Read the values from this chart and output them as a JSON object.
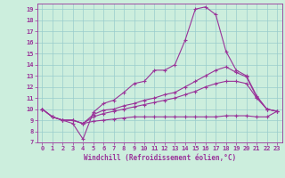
{
  "xlabel": "Windchill (Refroidissement éolien,°C)",
  "x_ticks": [
    0,
    1,
    2,
    3,
    4,
    5,
    6,
    7,
    8,
    9,
    10,
    11,
    12,
    13,
    14,
    15,
    16,
    17,
    18,
    19,
    20,
    21,
    22,
    23
  ],
  "ylim": [
    7,
    19.5
  ],
  "xlim": [
    -0.5,
    23.5
  ],
  "y_ticks": [
    7,
    8,
    9,
    10,
    11,
    12,
    13,
    14,
    15,
    16,
    17,
    18,
    19
  ],
  "bg_color": "#cceedd",
  "line_color": "#993399",
  "grid_color": "#99cccc",
  "line1_y": [
    10.0,
    9.3,
    9.0,
    8.7,
    7.3,
    9.7,
    10.5,
    10.8,
    11.5,
    12.3,
    12.5,
    13.5,
    13.5,
    14.0,
    16.2,
    19.0,
    19.2,
    18.5,
    15.2,
    13.5,
    13.0,
    11.2,
    10.0,
    9.8
  ],
  "line2_y": [
    10.0,
    9.3,
    9.0,
    9.0,
    8.7,
    9.5,
    9.9,
    10.0,
    10.3,
    10.5,
    10.8,
    11.0,
    11.3,
    11.5,
    12.0,
    12.5,
    13.0,
    13.5,
    13.8,
    13.3,
    12.9,
    11.1,
    10.0,
    9.8
  ],
  "line3_y": [
    10.0,
    9.3,
    9.0,
    9.0,
    8.7,
    9.3,
    9.6,
    9.8,
    10.0,
    10.2,
    10.4,
    10.6,
    10.8,
    11.0,
    11.3,
    11.6,
    12.0,
    12.3,
    12.5,
    12.5,
    12.3,
    11.0,
    10.0,
    9.8
  ],
  "line4_y": [
    10.0,
    9.3,
    9.0,
    9.0,
    8.7,
    8.9,
    9.0,
    9.1,
    9.2,
    9.3,
    9.3,
    9.3,
    9.3,
    9.3,
    9.3,
    9.3,
    9.3,
    9.3,
    9.4,
    9.4,
    9.4,
    9.3,
    9.3,
    9.8
  ]
}
